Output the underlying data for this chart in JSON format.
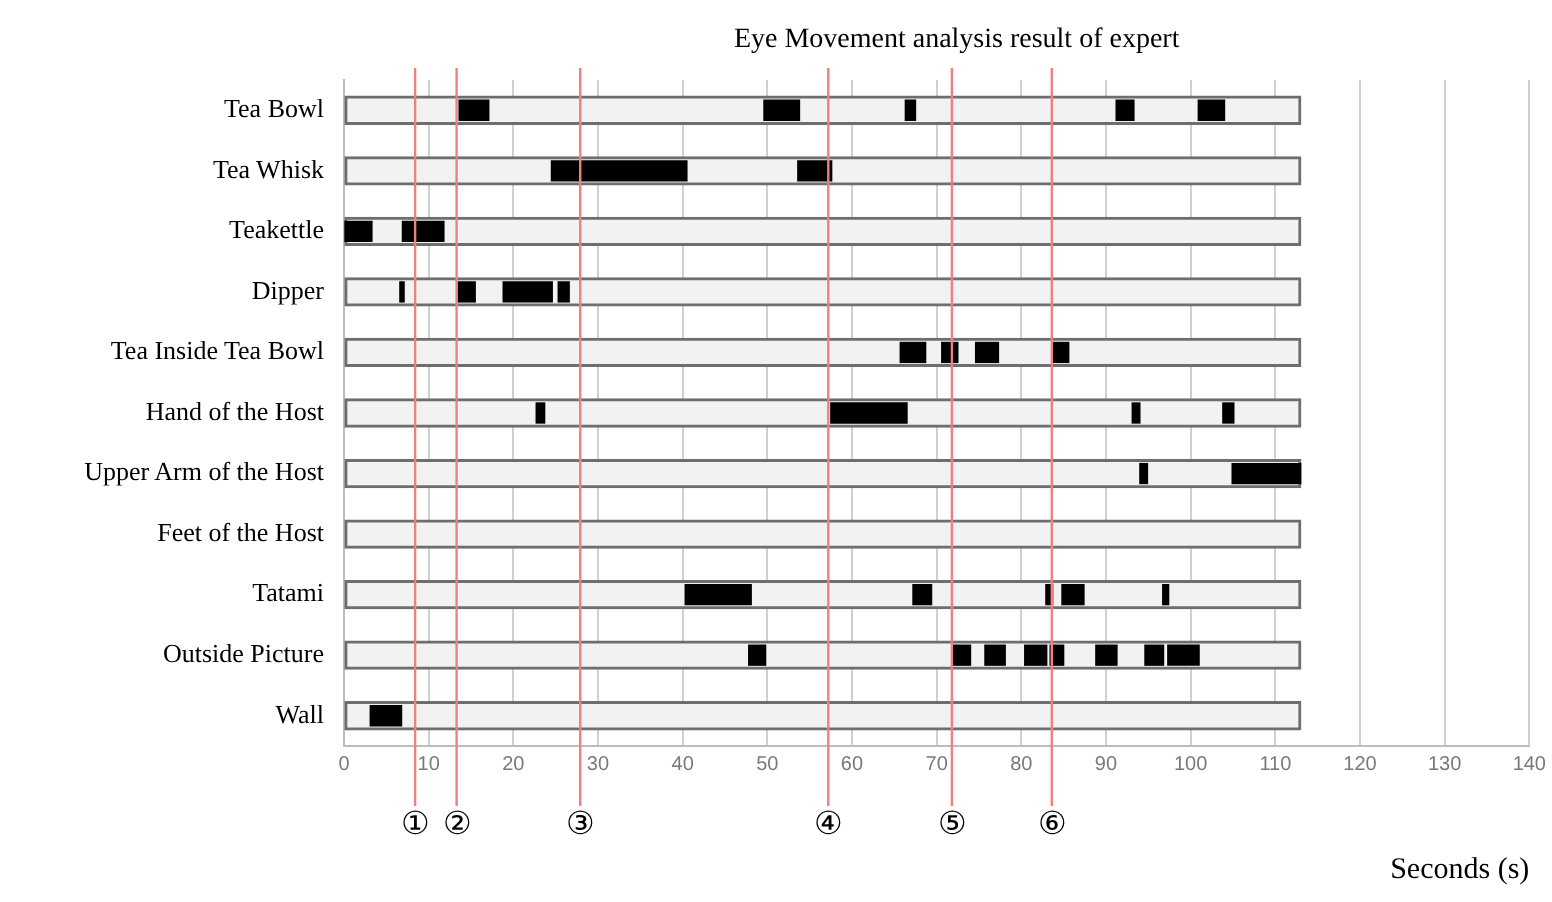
{
  "chart_data": {
    "type": "bar",
    "orientation": "horizontal",
    "title": "Eye Movement analysis result of expert",
    "xlabel": "Seconds (s)",
    "categories": [
      "Tea Bowl",
      "Tea Whisk",
      "Teakettle",
      "Dipper",
      "Tea Inside Tea Bowl",
      "Hand of the Host",
      "Upper Arm of the Host",
      "Feet of the Host",
      "Tatami",
      "Outside Picture",
      "Wall"
    ],
    "series": [
      {
        "color": "#f2f2f2",
        "base": [
          0,
          0,
          0,
          0,
          0,
          0,
          0,
          0,
          0,
          0,
          0
        ],
        "values": [
          113,
          113,
          113,
          113,
          113,
          113,
          113,
          113,
          113,
          113,
          113
        ]
      },
      {
        "color": "#000000",
        "base": [
          13.6,
          24.5,
          0,
          6.6,
          65.7,
          22.7,
          94.0,
          null,
          40.3,
          47.8,
          3.1
        ],
        "values": [
          3.5,
          16.0,
          3.3,
          0.5,
          3.0,
          1.0,
          0.9,
          null,
          7.8,
          2.0,
          3.7
        ]
      },
      {
        "color": "#000000",
        "base": [
          49.6,
          53.6,
          6.9,
          13.5,
          70.6,
          57.5,
          104.9,
          null,
          67.2,
          72.0,
          null
        ],
        "values": [
          4.2,
          4.0,
          4.9,
          2.0,
          1.9,
          9.0,
          8.1,
          null,
          2.2,
          2.0,
          null
        ]
      },
      {
        "color": "#000000",
        "base": [
          66.3,
          null,
          null,
          18.8,
          74.6,
          93.1,
          null,
          null,
          82.9,
          75.7,
          null
        ],
        "values": [
          1.2,
          null,
          null,
          5.8,
          2.7,
          0.9,
          null,
          null,
          0.8,
          2.4,
          null
        ]
      },
      {
        "color": "#000000",
        "base": [
          91.2,
          null,
          null,
          25.3,
          83.7,
          103.8,
          null,
          null,
          84.8,
          80.4,
          null
        ],
        "values": [
          2.1,
          null,
          null,
          1.3,
          1.9,
          1.3,
          null,
          null,
          2.6,
          2.6,
          null
        ]
      },
      {
        "color": "#000000",
        "base": [
          100.9,
          null,
          null,
          null,
          null,
          null,
          null,
          null,
          96.7,
          83.4,
          null
        ],
        "values": [
          3.1,
          null,
          null,
          null,
          null,
          null,
          null,
          null,
          0.7,
          1.6,
          null
        ]
      },
      {
        "color": "#000000",
        "base": [
          null,
          null,
          null,
          null,
          null,
          null,
          null,
          null,
          null,
          88.8,
          null
        ],
        "values": [
          null,
          null,
          null,
          null,
          null,
          null,
          null,
          null,
          null,
          2.5,
          null
        ]
      },
      {
        "color": "#000000",
        "base": [
          null,
          null,
          null,
          null,
          null,
          null,
          null,
          null,
          null,
          94.6,
          null
        ],
        "values": [
          null,
          null,
          null,
          null,
          null,
          null,
          null,
          null,
          null,
          2.2,
          null
        ]
      },
      {
        "color": "#000000",
        "base": [
          null,
          null,
          null,
          null,
          null,
          null,
          null,
          null,
          null,
          97.3,
          null
        ],
        "values": [
          null,
          null,
          null,
          null,
          null,
          null,
          null,
          null,
          null,
          3.7,
          null
        ]
      }
    ],
    "xlim": [
      0,
      140
    ],
    "xticks": [
      0,
      10,
      20,
      30,
      40,
      50,
      60,
      70,
      80,
      90,
      100,
      110,
      120,
      130,
      140
    ],
    "grid": "x",
    "legend": false,
    "ref_lines": [
      {
        "axis": "x",
        "value": 8.4,
        "label": "①",
        "color": "#f08080"
      },
      {
        "axis": "x",
        "value": 13.3,
        "label": "②",
        "color": "#f08080"
      },
      {
        "axis": "x",
        "value": 27.9,
        "label": "③",
        "color": "#f08080"
      },
      {
        "axis": "x",
        "value": 57.2,
        "label": "④",
        "color": "#f08080"
      },
      {
        "axis": "x",
        "value": 71.8,
        "label": "⑤",
        "color": "#f08080"
      },
      {
        "axis": "x",
        "value": 83.6,
        "label": "⑥",
        "color": "#f08080"
      }
    ]
  }
}
